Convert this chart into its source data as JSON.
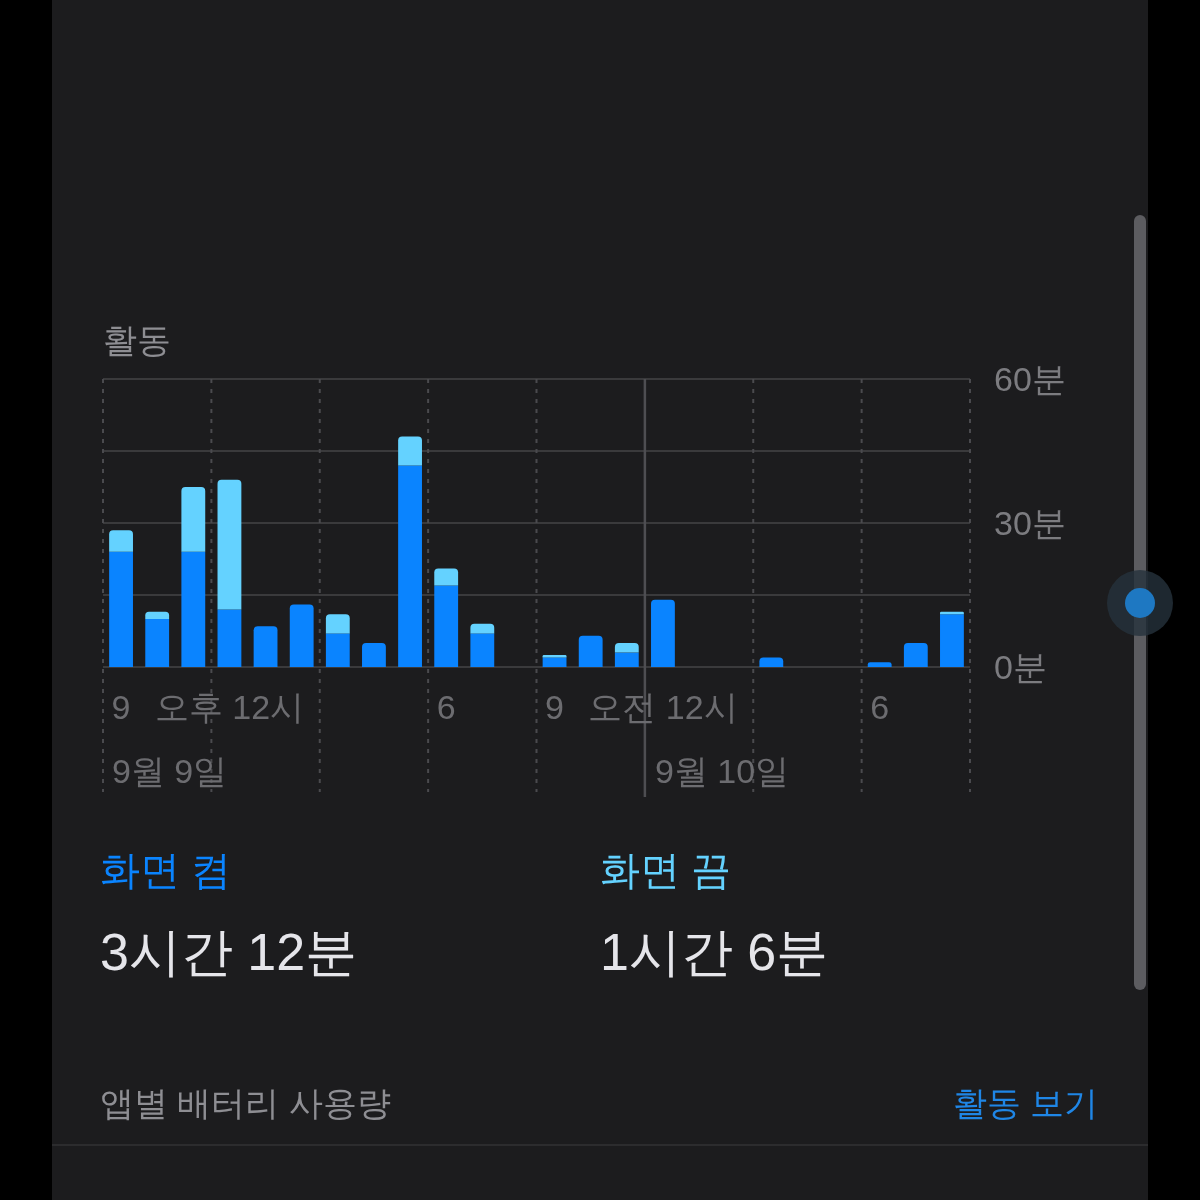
{
  "chart_data": {
    "type": "bar",
    "title": "활동",
    "stacked": true,
    "categories": [
      "9",
      null,
      null,
      "오후 12시",
      null,
      null,
      null,
      null,
      null,
      "6",
      null,
      null,
      "9",
      null,
      null,
      "오전 12시",
      null,
      null,
      null,
      null,
      null,
      "6",
      null,
      null
    ],
    "ylim": [
      0,
      60
    ],
    "yticks": [
      {
        "value": 0,
        "label": "0분"
      },
      {
        "value": 15,
        "label": null
      },
      {
        "value": 30,
        "label": "30분"
      },
      {
        "value": 45,
        "label": null
      },
      {
        "value": 60,
        "label": "60분"
      }
    ],
    "grid": true,
    "legend": "bottom",
    "series": [
      {
        "name": "화면 켬",
        "color": "#0a84ff",
        "values": [
          24,
          10,
          24,
          12,
          8.5,
          13,
          7,
          5,
          42,
          17,
          7,
          null,
          2,
          6.5,
          3,
          14,
          null,
          null,
          2,
          null,
          null,
          1,
          5,
          11
        ]
      },
      {
        "name": "화면 끔",
        "color": "#64d2ff",
        "values": [
          4.5,
          1.5,
          13.5,
          27,
          null,
          null,
          4,
          null,
          6,
          3.5,
          2,
          null,
          0.5,
          null,
          2,
          null,
          null,
          null,
          null,
          null,
          null,
          null,
          null,
          0.5
        ]
      }
    ],
    "annotations": [
      "9월 9일",
      "9월 10일",
      "3시간 12분",
      "1시간 6분",
      "앱별 배터리 사용량",
      "활동 보기"
    ]
  }
}
